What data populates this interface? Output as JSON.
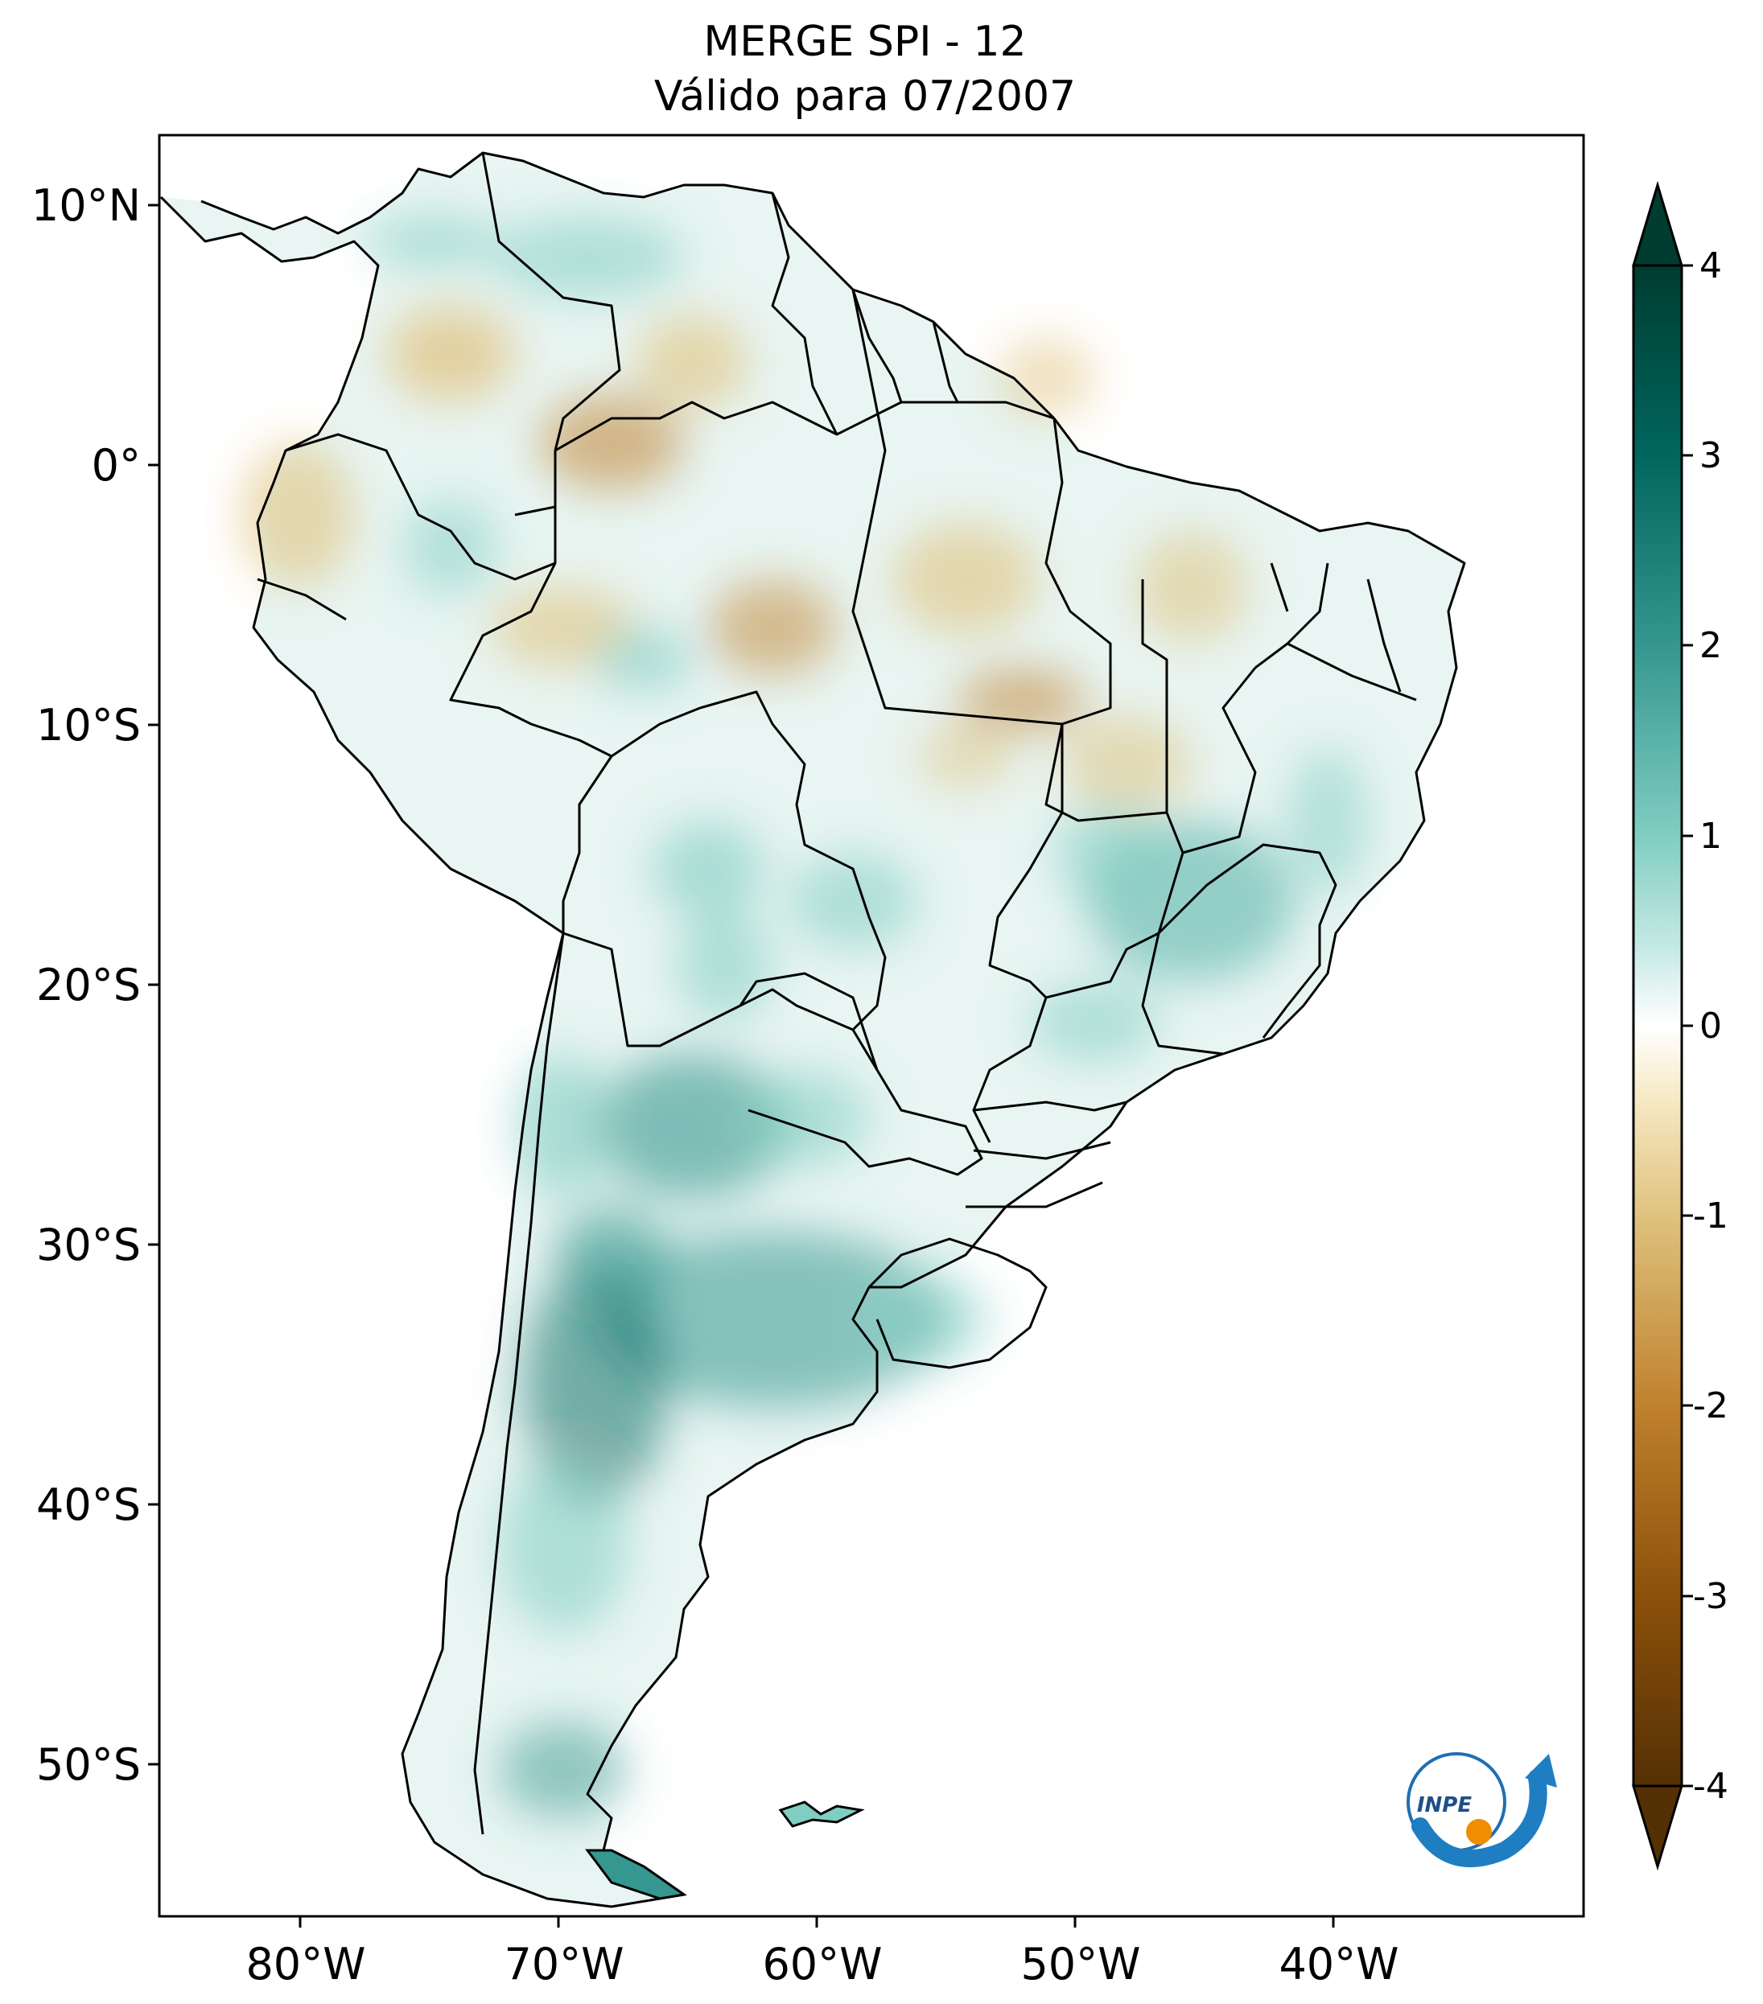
{
  "title": {
    "line1": "MERGE   SPI - 12",
    "line2": "Válido para 07/2007"
  },
  "axes": {
    "lon_labels": [
      "80°W",
      "70°W",
      "60°W",
      "50°W",
      "40°W"
    ],
    "lat_labels": [
      "10°N",
      "0°",
      "10°S",
      "20°S",
      "30°S",
      "40°S",
      "50°S"
    ]
  },
  "colorbar": {
    "ticks": [
      "4",
      "3",
      "2",
      "1",
      "0",
      "-1",
      "-2",
      "-3",
      "-4"
    ],
    "range": [
      -4,
      4
    ],
    "colors": {
      "max": "#003c30",
      "high": "#35978f",
      "mid_high": "#c7eae5",
      "zero": "#ffffff",
      "mid_low": "#f6e8c3",
      "low": "#bf812d",
      "min": "#543005"
    }
  },
  "logo": {
    "text": "INPE"
  }
}
